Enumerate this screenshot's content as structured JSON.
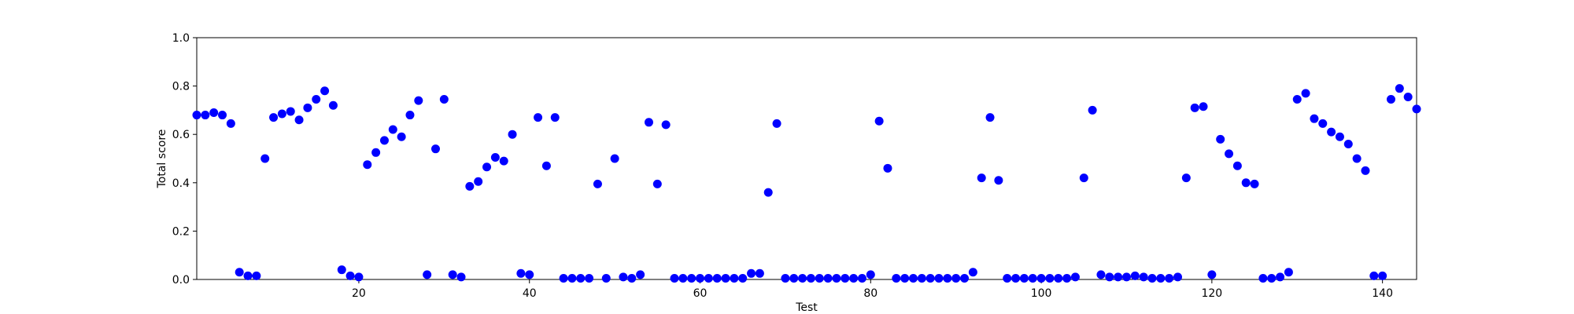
{
  "chart_data": {
    "type": "scatter",
    "title": "",
    "xlabel": "Test",
    "ylabel": "Total score",
    "xlim": [
      1,
      144
    ],
    "ylim": [
      0.0,
      1.0
    ],
    "x_ticks": [
      20,
      40,
      60,
      80,
      100,
      120,
      140
    ],
    "y_ticks": [
      "0.0",
      "0.2",
      "0.4",
      "0.6",
      "0.8",
      "1.0"
    ],
    "grid": false,
    "marker_color": "#0000ff",
    "series": [
      {
        "x": [
          1,
          2,
          3,
          4,
          5,
          6,
          7,
          8,
          9,
          10,
          11,
          12,
          13,
          14,
          15,
          16,
          17,
          18,
          19,
          20,
          21,
          22,
          23,
          24,
          25,
          26,
          27,
          28,
          29,
          30,
          31,
          32,
          33,
          34,
          35,
          36,
          37,
          38,
          39,
          40,
          41,
          42,
          43,
          44,
          45,
          46,
          47,
          48,
          49,
          50,
          51,
          52,
          53,
          54,
          55,
          56,
          57,
          58,
          59,
          60,
          61,
          62,
          63,
          64,
          65,
          66,
          67,
          68,
          69,
          70,
          71,
          72,
          73,
          74,
          75,
          76,
          77,
          78,
          79,
          80,
          81,
          82,
          83,
          84,
          85,
          86,
          87,
          88,
          89,
          90,
          91,
          92,
          93,
          94,
          95,
          96,
          97,
          98,
          99,
          100,
          101,
          102,
          103,
          104,
          105,
          106,
          107,
          108,
          109,
          110,
          111,
          112,
          113,
          114,
          115,
          116,
          117,
          118,
          119,
          120,
          121,
          122,
          123,
          124,
          125,
          126,
          127,
          128,
          129,
          130,
          131,
          132,
          133,
          134,
          135,
          136,
          137,
          138,
          139,
          140,
          141,
          142,
          143,
          144
        ],
        "y": [
          0.68,
          0.68,
          0.69,
          0.68,
          0.645,
          0.03,
          0.015,
          0.015,
          0.5,
          0.67,
          0.685,
          0.695,
          0.66,
          0.71,
          0.745,
          0.78,
          0.72,
          0.04,
          0.015,
          0.01,
          0.475,
          0.525,
          0.575,
          0.62,
          0.59,
          0.68,
          0.74,
          0.02,
          0.54,
          0.745,
          0.02,
          0.01,
          0.385,
          0.405,
          0.465,
          0.505,
          0.49,
          0.6,
          0.025,
          0.02,
          0.67,
          0.47,
          0.67,
          0.005,
          0.005,
          0.005,
          0.005,
          0.395,
          0.005,
          0.5,
          0.01,
          0.005,
          0.02,
          0.65,
          0.395,
          0.64,
          0.005,
          0.005,
          0.005,
          0.005,
          0.005,
          0.005,
          0.005,
          0.005,
          0.005,
          0.025,
          0.025,
          0.36,
          0.645,
          0.005,
          0.005,
          0.005,
          0.005,
          0.005,
          0.005,
          0.005,
          0.005,
          0.005,
          0.005,
          0.02,
          0.655,
          0.46,
          0.005,
          0.005,
          0.005,
          0.005,
          0.005,
          0.005,
          0.005,
          0.005,
          0.005,
          0.03,
          0.42,
          0.67,
          0.41,
          0.005,
          0.005,
          0.005,
          0.005,
          0.005,
          0.005,
          0.005,
          0.005,
          0.01,
          0.42,
          0.7,
          0.02,
          0.01,
          0.01,
          0.01,
          0.015,
          0.01,
          0.005,
          0.005,
          0.005,
          0.01,
          0.42,
          0.71,
          0.715,
          0.02,
          0.58,
          0.52,
          0.47,
          0.4,
          0.395,
          0.005,
          0.005,
          0.01,
          0.03,
          0.745,
          0.77,
          0.665,
          0.645,
          0.61,
          0.59,
          0.56,
          0.5,
          0.45,
          0.015,
          0.015,
          0.745,
          0.79,
          0.755,
          0.705
        ]
      }
    ]
  }
}
